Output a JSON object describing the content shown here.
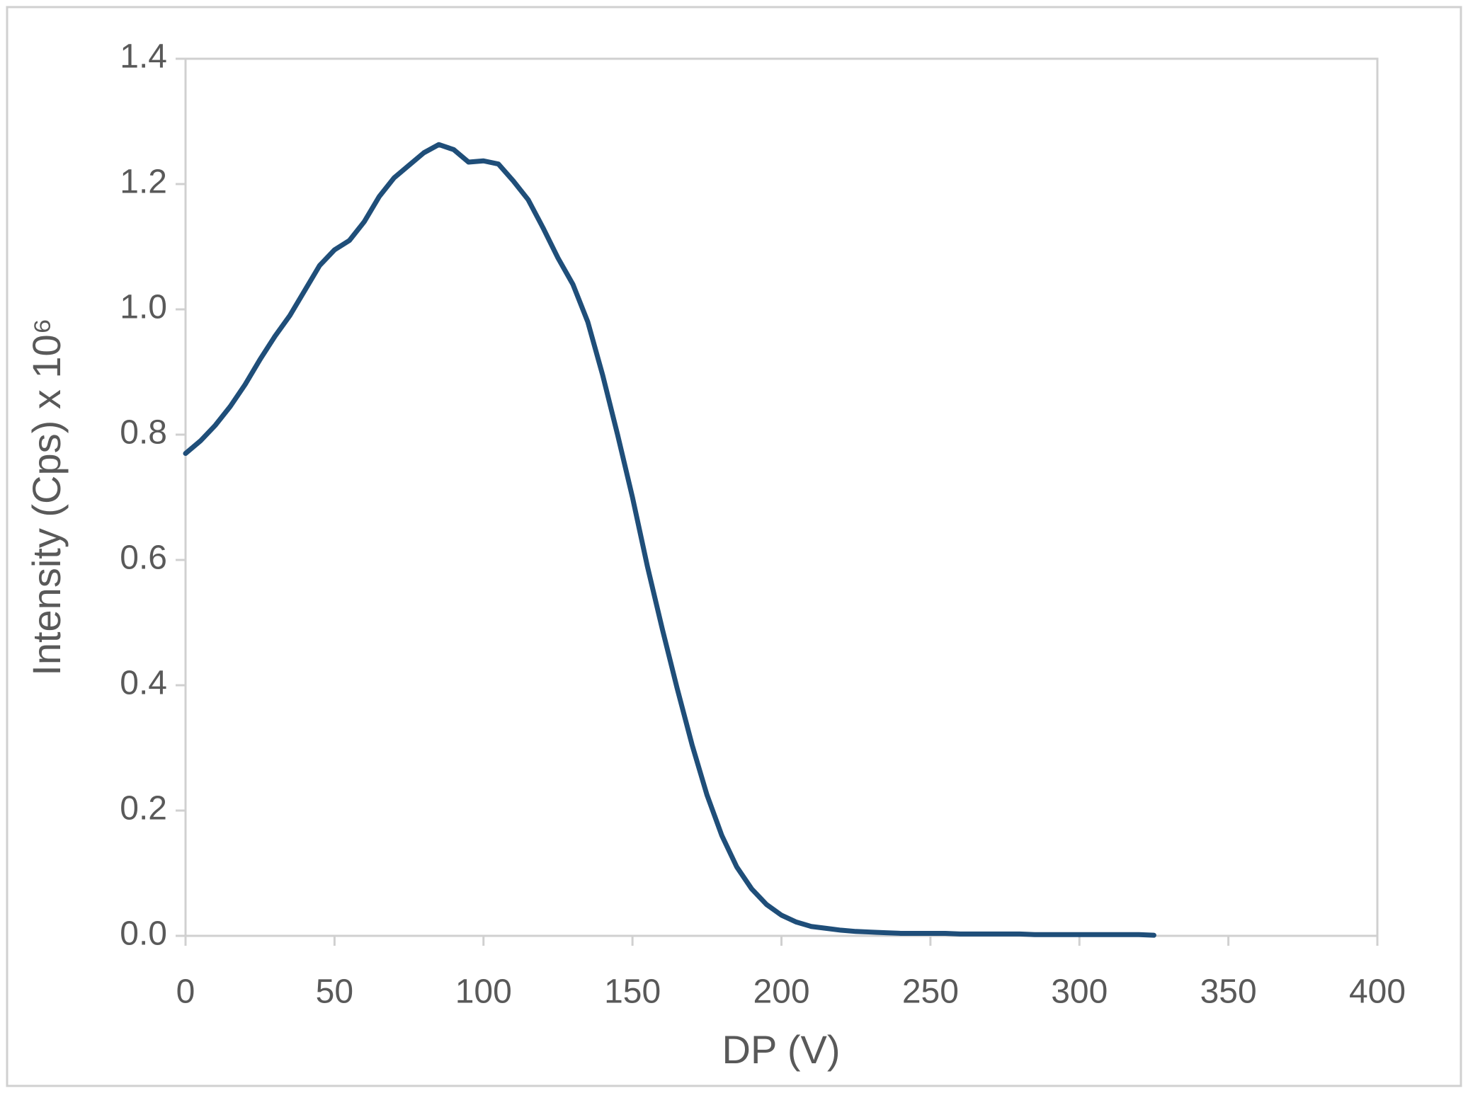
{
  "chart_data": {
    "type": "line",
    "xlabel": "DP (V)",
    "ylabel": "Intensity (Cps) x 10⁶",
    "xlim": [
      0,
      400
    ],
    "xticks": [
      0,
      50,
      100,
      150,
      200,
      250,
      300,
      350,
      400
    ],
    "ylim": [
      0,
      1.4
    ],
    "yticks": [
      {
        "value": 0,
        "label": "0.0"
      },
      {
        "value": 0.2,
        "label": "0.2"
      },
      {
        "value": 0.4,
        "label": "0.4"
      },
      {
        "value": 0.6,
        "label": "0.6"
      },
      {
        "value": 0.8,
        "label": "0.8"
      },
      {
        "value": 1.0,
        "label": "1.0"
      },
      {
        "value": 1.2,
        "label": "1.2"
      },
      {
        "value": 1.4,
        "label": "1.4"
      }
    ],
    "grid": false,
    "series": [
      {
        "color": "#1f4e79",
        "x": [
          0,
          5,
          10,
          15,
          20,
          25,
          30,
          35,
          40,
          45,
          50,
          55,
          60,
          65,
          70,
          75,
          80,
          85,
          90,
          95,
          100,
          105,
          110,
          115,
          120,
          125,
          130,
          135,
          140,
          145,
          150,
          155,
          160,
          165,
          170,
          175,
          180,
          185,
          190,
          195,
          200,
          205,
          210,
          215,
          220,
          225,
          230,
          235,
          240,
          245,
          250,
          255,
          260,
          265,
          270,
          275,
          280,
          285,
          290,
          295,
          300,
          305,
          310,
          315,
          320,
          325
        ],
        "values": [
          0.77,
          0.79,
          0.815,
          0.845,
          0.88,
          0.92,
          0.957,
          0.99,
          1.03,
          1.07,
          1.095,
          1.11,
          1.14,
          1.18,
          1.21,
          1.23,
          1.25,
          1.263,
          1.255,
          1.235,
          1.237,
          1.232,
          1.205,
          1.175,
          1.13,
          1.082,
          1.04,
          0.98,
          0.895,
          0.8,
          0.7,
          0.59,
          0.49,
          0.395,
          0.305,
          0.225,
          0.16,
          0.11,
          0.075,
          0.05,
          0.033,
          0.022,
          0.015,
          0.012,
          0.009,
          0.007,
          0.006,
          0.005,
          0.004,
          0.004,
          0.004,
          0.004,
          0.003,
          0.003,
          0.003,
          0.003,
          0.003,
          0.002,
          0.002,
          0.002,
          0.002,
          0.002,
          0.002,
          0.002,
          0.002,
          0.001
        ]
      }
    ]
  }
}
